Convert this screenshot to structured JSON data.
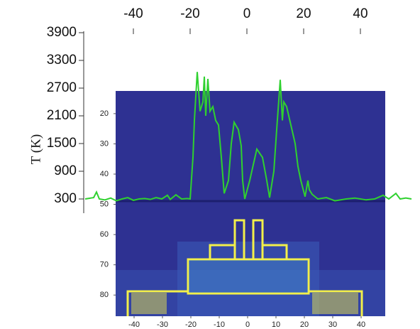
{
  "chart_data": [
    {
      "type": "line",
      "y_label": "T (K)",
      "xlim": [
        -57.5,
        59
      ],
      "xticks": [
        -40,
        -20,
        0,
        20,
        40
      ],
      "ylim": [
        0,
        3900
      ],
      "yticks": [
        300,
        900,
        1500,
        2100,
        2700,
        3300,
        3900
      ],
      "series": [
        {
          "color": "#2fd12f",
          "x": [
            -57,
            -55,
            -54,
            -53,
            -52,
            -50,
            -48,
            -46,
            -44,
            -42,
            -40,
            -38,
            -36,
            -34,
            -32,
            -30,
            -28,
            -27,
            -25,
            -23,
            -21,
            -20,
            -19,
            -18.5,
            -17.5,
            -16.5,
            -15.5,
            -15,
            -14.5,
            -13.75,
            -13,
            -12,
            -11,
            -10,
            -9,
            -8,
            -6.5,
            -5.5,
            -4.5,
            -3,
            -2,
            -1.5,
            -0.75,
            1,
            3.5,
            5.5,
            7,
            8,
            9.5,
            10.5,
            11.75,
            12.5,
            13,
            14,
            15.5,
            17,
            18,
            19,
            20.5,
            21.5,
            22,
            23,
            25,
            28,
            31,
            35,
            38,
            42,
            45,
            48,
            50,
            52.5,
            54,
            56,
            58
          ],
          "values": [
            300,
            320,
            330,
            450,
            300,
            280,
            320,
            260,
            300,
            330,
            270,
            300,
            310,
            290,
            330,
            300,
            380,
            290,
            390,
            300,
            310,
            300,
            1200,
            2000,
            3050,
            2200,
            2400,
            2950,
            2100,
            2900,
            2200,
            2300,
            2000,
            1900,
            1200,
            420,
            700,
            1500,
            1960,
            1800,
            1450,
            700,
            300,
            700,
            1380,
            1200,
            700,
            330,
            900,
            1800,
            2880,
            2000,
            2400,
            2300,
            1900,
            1500,
            1000,
            700,
            350,
            700,
            500,
            400,
            300,
            330,
            260,
            300,
            320,
            280,
            300,
            380,
            300,
            420,
            300,
            320,
            300
          ]
        }
      ]
    },
    {
      "type": "image",
      "xlim": [
        -46.5,
        48.5
      ],
      "xticks": [
        -40,
        -30,
        -20,
        -10,
        0,
        10,
        20,
        30,
        40
      ],
      "ylim": [
        12.5,
        87
      ],
      "y_inverted": true,
      "yticks": [
        20,
        30,
        40,
        50,
        60,
        70,
        80
      ]
    }
  ]
}
